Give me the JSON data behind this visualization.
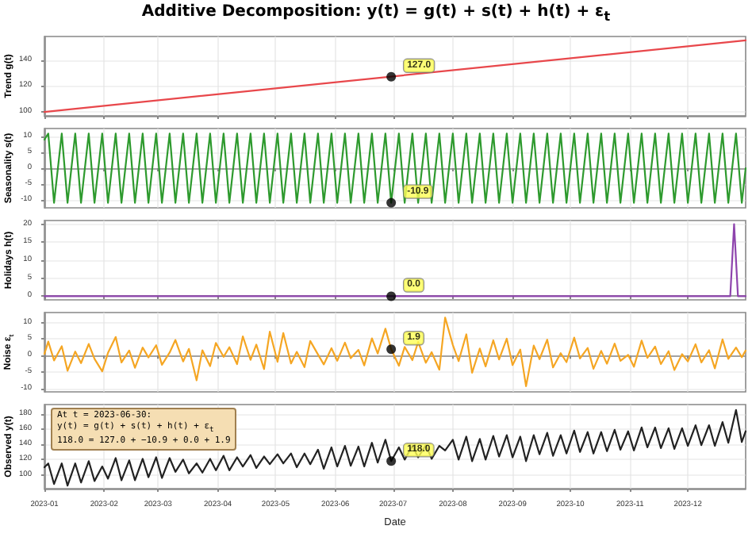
{
  "chart_data": [
    {
      "type": "line",
      "title": "Additive Decomposition: y(t) = g(t) + s(t) + h(t) + ε$_{t}$",
      "ylabel": "Trend g(t)",
      "xlim": [
        "2023-01-01",
        "2023-12-31"
      ],
      "xticks": [
        {
          "value": "2023-01-01",
          "label": null
        },
        {
          "value": "2023-02-01",
          "label": null
        },
        {
          "value": "2023-03-01",
          "label": null
        },
        {
          "value": "2023-04-01",
          "label": null
        },
        {
          "value": "2023-05-01",
          "label": null
        },
        {
          "value": "2023-06-01",
          "label": null
        },
        {
          "value": "2023-07-01",
          "label": null
        },
        {
          "value": "2023-08-01",
          "label": null
        },
        {
          "value": "2023-09-01",
          "label": null
        },
        {
          "value": "2023-10-01",
          "label": null
        },
        {
          "value": "2023-11-01",
          "label": null
        },
        {
          "value": "2023-12-01",
          "label": null
        }
      ],
      "ylim": [
        97,
        158
      ],
      "yticks": [
        100,
        120,
        140
      ],
      "grid": true,
      "tick_labels": "y",
      "series": [
        {
          "color": "#e8474b",
          "x": [
            "2023-01-01",
            "2023-12-31"
          ],
          "values": [
            100,
            155
          ]
        },
        {
          "type": "scatter",
          "marker": "circle",
          "color": "#000000",
          "x": [
            "2023-06-30"
          ],
          "values": [
            127.0
          ],
          "value_labels": [
            "127.0"
          ]
        }
      ]
    },
    {
      "type": "line",
      "ylabel": "Seasonality s(t)",
      "xlim": [
        "2023-01-01",
        "2023-12-31"
      ],
      "xticks": [
        {
          "value": "2023-01-01",
          "label": null
        },
        {
          "value": "2023-02-01",
          "label": null
        },
        {
          "value": "2023-03-01",
          "label": null
        },
        {
          "value": "2023-04-01",
          "label": null
        },
        {
          "value": "2023-05-01",
          "label": null
        },
        {
          "value": "2023-06-01",
          "label": null
        },
        {
          "value": "2023-07-01",
          "label": null
        },
        {
          "value": "2023-08-01",
          "label": null
        },
        {
          "value": "2023-09-01",
          "label": null
        },
        {
          "value": "2023-10-01",
          "label": null
        },
        {
          "value": "2023-11-01",
          "label": null
        },
        {
          "value": "2023-12-01",
          "label": null
        }
      ],
      "ylim": [
        -12.5,
        12.5
      ],
      "yticks": [
        -10,
        -5,
        0,
        5,
        10
      ],
      "grid": true,
      "tick_labels": "y",
      "x": [
        "2023-01-01",
        "2023-01-03",
        "2023-01-06",
        "2023-01-10",
        "2023-01-13",
        "2023-01-17",
        "2023-01-20",
        "2023-01-24",
        "2023-01-27",
        "2023-01-31",
        "2023-02-03",
        "2023-02-07",
        "2023-02-10",
        "2023-02-14",
        "2023-02-17",
        "2023-02-21",
        "2023-02-24",
        "2023-02-28",
        "2023-03-03",
        "2023-03-07",
        "2023-03-10",
        "2023-03-14",
        "2023-03-17",
        "2023-03-21",
        "2023-03-24",
        "2023-03-28",
        "2023-03-31",
        "2023-04-04",
        "2023-04-07",
        "2023-04-11",
        "2023-04-14",
        "2023-04-18",
        "2023-04-21",
        "2023-04-25",
        "2023-04-28",
        "2023-05-02",
        "2023-05-05",
        "2023-05-09",
        "2023-05-12",
        "2023-05-16",
        "2023-05-19",
        "2023-05-23",
        "2023-05-26",
        "2023-05-30",
        "2023-06-02",
        "2023-06-06",
        "2023-06-09",
        "2023-06-13",
        "2023-06-16",
        "2023-06-20",
        "2023-06-23",
        "2023-06-27",
        "2023-06-30",
        "2023-07-04",
        "2023-07-07",
        "2023-07-11",
        "2023-07-14",
        "2023-07-18",
        "2023-07-21",
        "2023-07-25",
        "2023-07-28",
        "2023-08-01",
        "2023-08-04",
        "2023-08-08",
        "2023-08-11",
        "2023-08-15",
        "2023-08-18",
        "2023-08-22",
        "2023-08-25",
        "2023-08-29",
        "2023-09-01",
        "2023-09-05",
        "2023-09-08",
        "2023-09-12",
        "2023-09-15",
        "2023-09-19",
        "2023-09-22",
        "2023-09-26",
        "2023-09-29",
        "2023-10-03",
        "2023-10-06",
        "2023-10-10",
        "2023-10-13",
        "2023-10-17",
        "2023-10-20",
        "2023-10-24",
        "2023-10-27",
        "2023-10-31",
        "2023-11-03",
        "2023-11-07",
        "2023-11-10",
        "2023-11-14",
        "2023-11-17",
        "2023-11-21",
        "2023-11-24",
        "2023-11-28",
        "2023-12-01",
        "2023-12-05",
        "2023-12-08",
        "2023-12-12",
        "2023-12-15",
        "2023-12-19",
        "2023-12-22",
        "2023-12-26",
        "2023-12-29",
        "2023-12-31"
      ],
      "series": [
        {
          "color": "#2e9a2e",
          "values": [
            9,
            10.9,
            -10.9,
            10.9,
            -10.9,
            10.9,
            -10.9,
            10.9,
            -10.9,
            10.9,
            -10.9,
            10.9,
            -10.9,
            10.9,
            -10.9,
            10.9,
            -10.9,
            10.9,
            -10.9,
            10.9,
            -10.9,
            10.9,
            -10.9,
            10.9,
            -10.9,
            10.9,
            -10.9,
            10.9,
            -10.9,
            10.9,
            -10.9,
            10.9,
            -10.9,
            10.9,
            -10.9,
            10.9,
            -10.9,
            10.9,
            -10.9,
            10.9,
            -10.9,
            10.9,
            -10.9,
            10.9,
            -10.9,
            10.9,
            -10.9,
            10.9,
            -10.9,
            10.9,
            -10.9,
            10.9,
            -10.9,
            10.9,
            -10.9,
            10.9,
            -10.9,
            10.9,
            -10.9,
            10.9,
            -10.9,
            10.9,
            -10.9,
            10.9,
            -10.9,
            10.9,
            -10.9,
            10.9,
            -10.9,
            10.9,
            -10.9,
            10.9,
            -10.9,
            10.9,
            -10.9,
            10.9,
            -10.9,
            10.9,
            -10.9,
            10.9,
            -10.9,
            10.9,
            -10.9,
            10.9,
            -10.9,
            10.9,
            -10.9,
            10.9,
            -10.9,
            10.9,
            -10.9,
            10.9,
            -10.9,
            10.9,
            -10.9,
            10.9,
            -10.9,
            10.9,
            -10.9,
            10.9,
            -10.9,
            10.9,
            -10.9,
            10.9,
            -10.9,
            0
          ]
        },
        {
          "type": "scatter",
          "marker": "circle",
          "color": "#000000",
          "x": [
            "2023-06-30"
          ],
          "values": [
            -10.9
          ],
          "value_labels": [
            "-10.9"
          ]
        }
      ]
    },
    {
      "type": "line",
      "ylabel": "Holidays h(t)",
      "xlim": [
        "2023-01-01",
        "2023-12-31"
      ],
      "xticks": [
        {
          "value": "2023-01-01",
          "label": null
        },
        {
          "value": "2023-02-01",
          "label": null
        },
        {
          "value": "2023-03-01",
          "label": null
        },
        {
          "value": "2023-04-01",
          "label": null
        },
        {
          "value": "2023-05-01",
          "label": null
        },
        {
          "value": "2023-06-01",
          "label": null
        },
        {
          "value": "2023-07-01",
          "label": null
        },
        {
          "value": "2023-08-01",
          "label": null
        },
        {
          "value": "2023-09-01",
          "label": null
        },
        {
          "value": "2023-10-01",
          "label": null
        },
        {
          "value": "2023-11-01",
          "label": null
        },
        {
          "value": "2023-12-01",
          "label": null
        }
      ],
      "ylim": [
        -1,
        21
      ],
      "yticks": [
        0,
        5,
        10,
        15,
        20
      ],
      "grid": true,
      "tick_labels": "y",
      "series": [
        {
          "color": "#8e44ad",
          "x": [
            "2023-01-01",
            "2023-12-23",
            "2023-12-25",
            "2023-12-27",
            "2023-12-31"
          ],
          "values": [
            0,
            0,
            20,
            0,
            0
          ]
        },
        {
          "type": "scatter",
          "marker": "circle",
          "color": "#000000",
          "x": [
            "2023-06-30"
          ],
          "values": [
            0.0
          ],
          "value_labels": [
            "0.0"
          ]
        }
      ]
    },
    {
      "type": "line",
      "ylabel": "Noise ε$_{t}$",
      "xlim": [
        "2023-01-01",
        "2023-12-31"
      ],
      "xticks": [
        {
          "value": "2023-01-01",
          "label": null
        },
        {
          "value": "2023-02-01",
          "label": null
        },
        {
          "value": "2023-03-01",
          "label": null
        },
        {
          "value": "2023-04-01",
          "label": null
        },
        {
          "value": "2023-05-01",
          "label": null
        },
        {
          "value": "2023-06-01",
          "label": null
        },
        {
          "value": "2023-07-01",
          "label": null
        },
        {
          "value": "2023-08-01",
          "label": null
        },
        {
          "value": "2023-09-01",
          "label": null
        },
        {
          "value": "2023-10-01",
          "label": null
        },
        {
          "value": "2023-11-01",
          "label": null
        },
        {
          "value": "2023-12-01",
          "label": null
        }
      ],
      "ylim": [
        -11,
        13
      ],
      "yticks": [
        -10,
        -5,
        0,
        5,
        10
      ],
      "grid": true,
      "tick_labels": "y",
      "x": [
        "2023-01-01",
        "2023-01-03",
        "2023-01-06",
        "2023-01-10",
        "2023-01-13",
        "2023-01-17",
        "2023-01-20",
        "2023-01-24",
        "2023-01-27",
        "2023-01-31",
        "2023-02-03",
        "2023-02-07",
        "2023-02-10",
        "2023-02-14",
        "2023-02-17",
        "2023-02-21",
        "2023-02-24",
        "2023-02-28",
        "2023-03-03",
        "2023-03-07",
        "2023-03-10",
        "2023-03-14",
        "2023-03-17",
        "2023-03-21",
        "2023-03-24",
        "2023-03-28",
        "2023-03-31",
        "2023-04-04",
        "2023-04-07",
        "2023-04-11",
        "2023-04-14",
        "2023-04-18",
        "2023-04-21",
        "2023-04-25",
        "2023-04-28",
        "2023-05-02",
        "2023-05-05",
        "2023-05-09",
        "2023-05-12",
        "2023-05-16",
        "2023-05-19",
        "2023-05-23",
        "2023-05-26",
        "2023-05-30",
        "2023-06-02",
        "2023-06-06",
        "2023-06-09",
        "2023-06-13",
        "2023-06-16",
        "2023-06-20",
        "2023-06-23",
        "2023-06-27",
        "2023-06-30",
        "2023-07-04",
        "2023-07-07",
        "2023-07-11",
        "2023-07-14",
        "2023-07-18",
        "2023-07-21",
        "2023-07-25",
        "2023-07-28",
        "2023-08-01",
        "2023-08-04",
        "2023-08-08",
        "2023-08-11",
        "2023-08-15",
        "2023-08-18",
        "2023-08-22",
        "2023-08-25",
        "2023-08-29",
        "2023-09-01",
        "2023-09-05",
        "2023-09-08",
        "2023-09-12",
        "2023-09-15",
        "2023-09-19",
        "2023-09-22",
        "2023-09-26",
        "2023-09-29",
        "2023-10-03",
        "2023-10-06",
        "2023-10-10",
        "2023-10-13",
        "2023-10-17",
        "2023-10-20",
        "2023-10-24",
        "2023-10-27",
        "2023-10-31",
        "2023-11-03",
        "2023-11-07",
        "2023-11-10",
        "2023-11-14",
        "2023-11-17",
        "2023-11-21",
        "2023-11-24",
        "2023-11-28",
        "2023-12-01",
        "2023-12-05",
        "2023-12-08",
        "2023-12-12",
        "2023-12-15",
        "2023-12-19",
        "2023-12-22",
        "2023-12-26",
        "2023-12-29",
        "2023-12-31"
      ],
      "series": [
        {
          "color": "#f5a623",
          "values": [
            0.5,
            4.2,
            -1.5,
            2.8,
            -4.6,
            1.2,
            -2.3,
            3.5,
            -1.0,
            -4.8,
            0.8,
            5.6,
            -2.1,
            1.5,
            -3.7,
            2.4,
            -0.6,
            3.1,
            -2.8,
            0.9,
            4.7,
            -1.8,
            2.0,
            -7.5,
            1.6,
            -3.2,
            3.8,
            -0.4,
            2.5,
            -2.6,
            5.8,
            -1.3,
            3.3,
            -4.1,
            7.2,
            -1.9,
            6.8,
            -2.4,
            1.1,
            -3.5,
            4.4,
            0.3,
            -2.7,
            2.2,
            -1.6,
            3.9,
            -0.8,
            1.7,
            -3.0,
            5.2,
            0.6,
            8.1,
            1.9,
            -3.1,
            2.6,
            -1.4,
            4.1,
            -2.2,
            1.0,
            -4.3,
            11.5,
            3.2,
            -1.7,
            6.4,
            -5.2,
            2.1,
            -3.3,
            4.6,
            -1.2,
            5.1,
            -2.9,
            1.8,
            -9.3,
            3.0,
            -1.1,
            4.8,
            -3.6,
            0.7,
            -2.0,
            5.4,
            -0.9,
            2.3,
            -4.0,
            1.4,
            -2.5,
            3.6,
            -1.6,
            0.2,
            -3.4,
            4.5,
            -0.7,
            2.7,
            -2.6,
            1.3,
            -4.4,
            0.4,
            -1.8,
            3.4,
            -2.1,
            1.6,
            -3.9,
            4.9,
            -1.0,
            2.4,
            -0.5,
            1.5
          ]
        },
        {
          "type": "scatter",
          "marker": "circle",
          "color": "#000000",
          "x": [
            "2023-06-30"
          ],
          "values": [
            1.9
          ],
          "value_labels": [
            "1.9"
          ]
        }
      ]
    },
    {
      "type": "line",
      "ylabel": "Observed y(t)",
      "xlabel": "Date",
      "xlim": [
        "2023-01-01",
        "2023-12-31"
      ],
      "xticks": [
        {
          "value": "2023-01-01",
          "label": "2023-01"
        },
        {
          "value": "2023-02-01",
          "label": "2023-02"
        },
        {
          "value": "2023-03-01",
          "label": "2023-03"
        },
        {
          "value": "2023-04-01",
          "label": "2023-04"
        },
        {
          "value": "2023-05-01",
          "label": "2023-05"
        },
        {
          "value": "2023-06-01",
          "label": "2023-06"
        },
        {
          "value": "2023-07-01",
          "label": "2023-07"
        },
        {
          "value": "2023-08-01",
          "label": "2023-08"
        },
        {
          "value": "2023-09-01",
          "label": "2023-09"
        },
        {
          "value": "2023-10-01",
          "label": "2023-10"
        },
        {
          "value": "2023-11-01",
          "label": "2023-11"
        },
        {
          "value": "2023-12-01",
          "label": "2023-12"
        }
      ],
      "ylim": [
        82,
        192
      ],
      "yticks": [
        100,
        120,
        140,
        160,
        180
      ],
      "grid": true,
      "annotations": [
        "At t = 2023-06-30:\ny(t) = g(t) + s(t) + h(t) + ε$_{t}$\n118.0 = 127.0 + −10.9 + 0.0 + 1.9"
      ],
      "x": [
        "2023-01-01",
        "2023-01-03",
        "2023-01-06",
        "2023-01-10",
        "2023-01-13",
        "2023-01-17",
        "2023-01-20",
        "2023-01-24",
        "2023-01-27",
        "2023-01-31",
        "2023-02-03",
        "2023-02-07",
        "2023-02-10",
        "2023-02-14",
        "2023-02-17",
        "2023-02-21",
        "2023-02-24",
        "2023-02-28",
        "2023-03-03",
        "2023-03-07",
        "2023-03-10",
        "2023-03-14",
        "2023-03-17",
        "2023-03-21",
        "2023-03-24",
        "2023-03-28",
        "2023-03-31",
        "2023-04-04",
        "2023-04-07",
        "2023-04-11",
        "2023-04-14",
        "2023-04-18",
        "2023-04-21",
        "2023-04-25",
        "2023-04-28",
        "2023-05-02",
        "2023-05-05",
        "2023-05-09",
        "2023-05-12",
        "2023-05-16",
        "2023-05-19",
        "2023-05-23",
        "2023-05-26",
        "2023-05-30",
        "2023-06-02",
        "2023-06-06",
        "2023-06-09",
        "2023-06-13",
        "2023-06-16",
        "2023-06-20",
        "2023-06-23",
        "2023-06-27",
        "2023-06-30",
        "2023-07-04",
        "2023-07-07",
        "2023-07-11",
        "2023-07-14",
        "2023-07-18",
        "2023-07-21",
        "2023-07-25",
        "2023-07-28",
        "2023-08-01",
        "2023-08-04",
        "2023-08-08",
        "2023-08-11",
        "2023-08-15",
        "2023-08-18",
        "2023-08-22",
        "2023-08-25",
        "2023-08-29",
        "2023-09-01",
        "2023-09-05",
        "2023-09-08",
        "2023-09-12",
        "2023-09-15",
        "2023-09-19",
        "2023-09-22",
        "2023-09-26",
        "2023-09-29",
        "2023-10-03",
        "2023-10-06",
        "2023-10-10",
        "2023-10-13",
        "2023-10-17",
        "2023-10-20",
        "2023-10-24",
        "2023-10-27",
        "2023-10-31",
        "2023-11-03",
        "2023-11-07",
        "2023-11-10",
        "2023-11-14",
        "2023-11-17",
        "2023-11-21",
        "2023-11-24",
        "2023-11-28",
        "2023-12-01",
        "2023-12-05",
        "2023-12-08",
        "2023-12-12",
        "2023-12-15",
        "2023-12-19",
        "2023-12-22",
        "2023-12-26",
        "2023-12-29",
        "2023-12-31"
      ],
      "series": [
        {
          "color": "#222222",
          "values": [
            110,
            115,
            88,
            115,
            86,
            115,
            90,
            118,
            92,
            111,
            95,
            122,
            93,
            119,
            93,
            121,
            97,
            123,
            96,
            122,
            104,
            120,
            102,
            115,
            103,
            121,
            106,
            125,
            106,
            123,
            111,
            126,
            109,
            124,
            114,
            127,
            115,
            128,
            110,
            128,
            114,
            133,
            108,
            136,
            111,
            138,
            112,
            137,
            111,
            142,
            116,
            146,
            118,
            136,
            120,
            138,
            123,
            139,
            121,
            138,
            132,
            146,
            120,
            150,
            118,
            147,
            120,
            151,
            124,
            152,
            123,
            150,
            118,
            152,
            127,
            155,
            125,
            152,
            128,
            158,
            130,
            156,
            128,
            156,
            131,
            159,
            133,
            157,
            132,
            162,
            136,
            162,
            135,
            161,
            134,
            161,
            138,
            165,
            139,
            165,
            138,
            169,
            142,
            185,
            143,
            157
          ]
        },
        {
          "type": "scatter",
          "marker": "circle",
          "color": "#000000",
          "x": [
            "2023-06-30"
          ],
          "values": [
            118.0
          ],
          "value_labels": [
            "118.0"
          ]
        }
      ]
    }
  ]
}
